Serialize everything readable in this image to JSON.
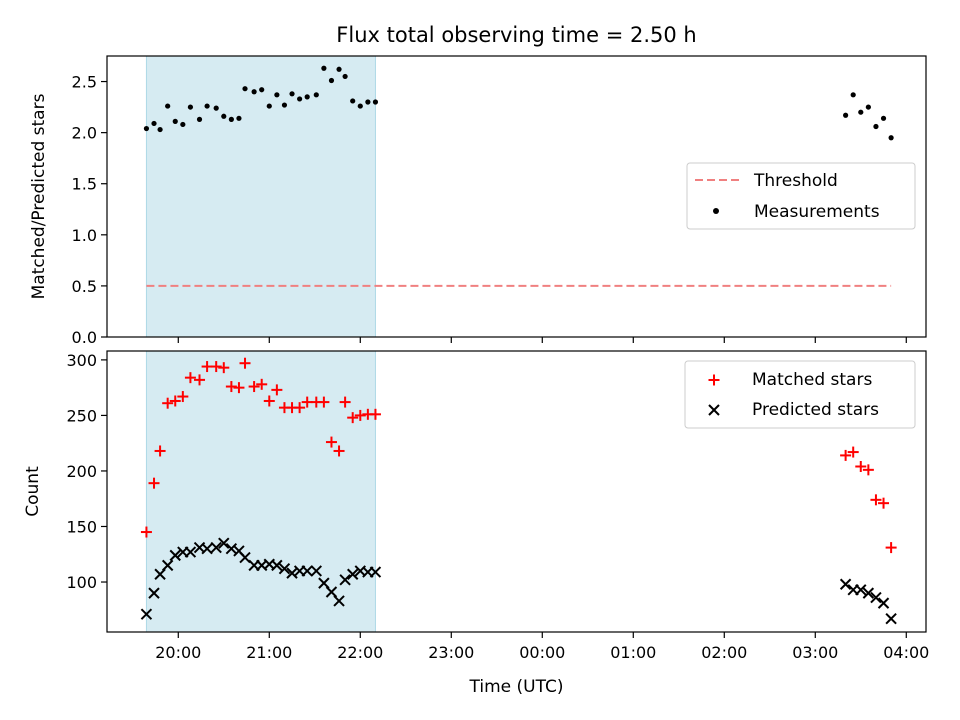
{
  "chart_data": [
    {
      "type": "scatter",
      "title": "Flux total observing time = 2.50 h",
      "xlabel": "",
      "ylabel": "Matched/Predicted stars",
      "ylim": [
        0,
        2.75
      ],
      "yticks": [
        "0.0",
        "0.5",
        "1.0",
        "1.5",
        "2.0",
        "2.5"
      ],
      "threshold": {
        "name": "Threshold",
        "value": 0.5,
        "x_start": "19:39",
        "x_end": "03:50",
        "color": "#f08080"
      },
      "shaded_interval": {
        "start": "19:39",
        "end": "22:10",
        "color": "#add8e6"
      },
      "legend": {
        "placement": "center-right",
        "entries": [
          "Threshold",
          "Measurements"
        ]
      },
      "series": [
        {
          "name": "Measurements",
          "marker": "dot",
          "color": "#000000",
          "points": [
            [
              "19:39",
              2.04
            ],
            [
              "19:44",
              2.09
            ],
            [
              "19:48",
              2.03
            ],
            [
              "19:53",
              2.26
            ],
            [
              "19:58",
              2.11
            ],
            [
              "20:03",
              2.08
            ],
            [
              "20:08",
              2.25
            ],
            [
              "20:14",
              2.13
            ],
            [
              "20:19",
              2.26
            ],
            [
              "20:25",
              2.24
            ],
            [
              "20:30",
              2.16
            ],
            [
              "20:35",
              2.13
            ],
            [
              "20:40",
              2.14
            ],
            [
              "20:44",
              2.43
            ],
            [
              "20:50",
              2.4
            ],
            [
              "20:55",
              2.42
            ],
            [
              "21:00",
              2.26
            ],
            [
              "21:05",
              2.37
            ],
            [
              "21:10",
              2.27
            ],
            [
              "21:15",
              2.38
            ],
            [
              "21:20",
              2.33
            ],
            [
              "21:25",
              2.35
            ],
            [
              "21:31",
              2.37
            ],
            [
              "21:36",
              2.63
            ],
            [
              "21:41",
              2.51
            ],
            [
              "21:46",
              2.62
            ],
            [
              "21:50",
              2.55
            ],
            [
              "21:55",
              2.31
            ],
            [
              "22:00",
              2.26
            ],
            [
              "22:05",
              2.3
            ],
            [
              "22:10",
              2.3
            ],
            [
              "03:20",
              2.17
            ],
            [
              "03:25",
              2.37
            ],
            [
              "03:30",
              2.2
            ],
            [
              "03:35",
              2.25
            ],
            [
              "03:40",
              2.06
            ],
            [
              "03:45",
              2.14
            ],
            [
              "03:50",
              1.95
            ]
          ]
        }
      ]
    },
    {
      "type": "scatter",
      "title": "",
      "xlabel": "Time (UTC)",
      "ylabel": "Count",
      "ylim": [
        55,
        308
      ],
      "yticks": [
        "100",
        "150",
        "200",
        "250",
        "300"
      ],
      "xticks": [
        "20:00",
        "21:00",
        "22:00",
        "23:00",
        "00:00",
        "01:00",
        "02:00",
        "03:00",
        "04:00"
      ],
      "shaded_interval": {
        "start": "19:39",
        "end": "22:10",
        "color": "#add8e6"
      },
      "legend": {
        "placement": "top-right",
        "entries": [
          "Matched stars",
          "Predicted stars"
        ]
      },
      "series": [
        {
          "name": "Matched stars",
          "marker": "plus",
          "color": "#ff0000",
          "points": [
            [
              "19:39",
              145
            ],
            [
              "19:44",
              189
            ],
            [
              "19:48",
              218
            ],
            [
              "19:53",
              261
            ],
            [
              "19:58",
              263
            ],
            [
              "20:03",
              267
            ],
            [
              "20:08",
              284
            ],
            [
              "20:14",
              282
            ],
            [
              "20:19",
              294
            ],
            [
              "20:25",
              294
            ],
            [
              "20:30",
              293
            ],
            [
              "20:35",
              276
            ],
            [
              "20:40",
              275
            ],
            [
              "20:44",
              297
            ],
            [
              "20:50",
              276
            ],
            [
              "20:55",
              278
            ],
            [
              "21:00",
              263
            ],
            [
              "21:05",
              273
            ],
            [
              "21:10",
              257
            ],
            [
              "21:15",
              257
            ],
            [
              "21:20",
              257
            ],
            [
              "21:25",
              262
            ],
            [
              "21:31",
              262
            ],
            [
              "21:36",
              262
            ],
            [
              "21:41",
              226
            ],
            [
              "21:46",
              218
            ],
            [
              "21:50",
              262
            ],
            [
              "21:55",
              248
            ],
            [
              "22:00",
              250
            ],
            [
              "22:05",
              251
            ],
            [
              "22:10",
              251
            ],
            [
              "03:20",
              214
            ],
            [
              "03:25",
              217
            ],
            [
              "03:30",
              204
            ],
            [
              "03:35",
              201
            ],
            [
              "03:40",
              174
            ],
            [
              "03:45",
              171
            ],
            [
              "03:50",
              131
            ]
          ]
        },
        {
          "name": "Predicted stars",
          "marker": "x",
          "color": "#000000",
          "points": [
            [
              "19:39",
              71
            ],
            [
              "19:44",
              90
            ],
            [
              "19:48",
              107
            ],
            [
              "19:53",
              115
            ],
            [
              "19:58",
              124
            ],
            [
              "20:03",
              127
            ],
            [
              "20:08",
              127
            ],
            [
              "20:14",
              131
            ],
            [
              "20:19",
              130
            ],
            [
              "20:25",
              131
            ],
            [
              "20:30",
              135
            ],
            [
              "20:35",
              130
            ],
            [
              "20:40",
              128
            ],
            [
              "20:44",
              122
            ],
            [
              "20:50",
              115
            ],
            [
              "20:55",
              115
            ],
            [
              "21:00",
              116
            ],
            [
              "21:05",
              115
            ],
            [
              "21:10",
              112
            ],
            [
              "21:15",
              108
            ],
            [
              "21:20",
              110
            ],
            [
              "21:25",
              110
            ],
            [
              "21:31",
              110
            ],
            [
              "21:36",
              99
            ],
            [
              "21:41",
              91
            ],
            [
              "21:46",
              83
            ],
            [
              "21:50",
              102
            ],
            [
              "21:55",
              107
            ],
            [
              "22:00",
              110
            ],
            [
              "22:05",
              109
            ],
            [
              "22:10",
              109
            ],
            [
              "03:20",
              98
            ],
            [
              "03:25",
              93
            ],
            [
              "03:30",
              93
            ],
            [
              "03:35",
              90
            ],
            [
              "03:40",
              86
            ],
            [
              "03:45",
              81
            ],
            [
              "03:50",
              67
            ]
          ]
        }
      ]
    }
  ]
}
